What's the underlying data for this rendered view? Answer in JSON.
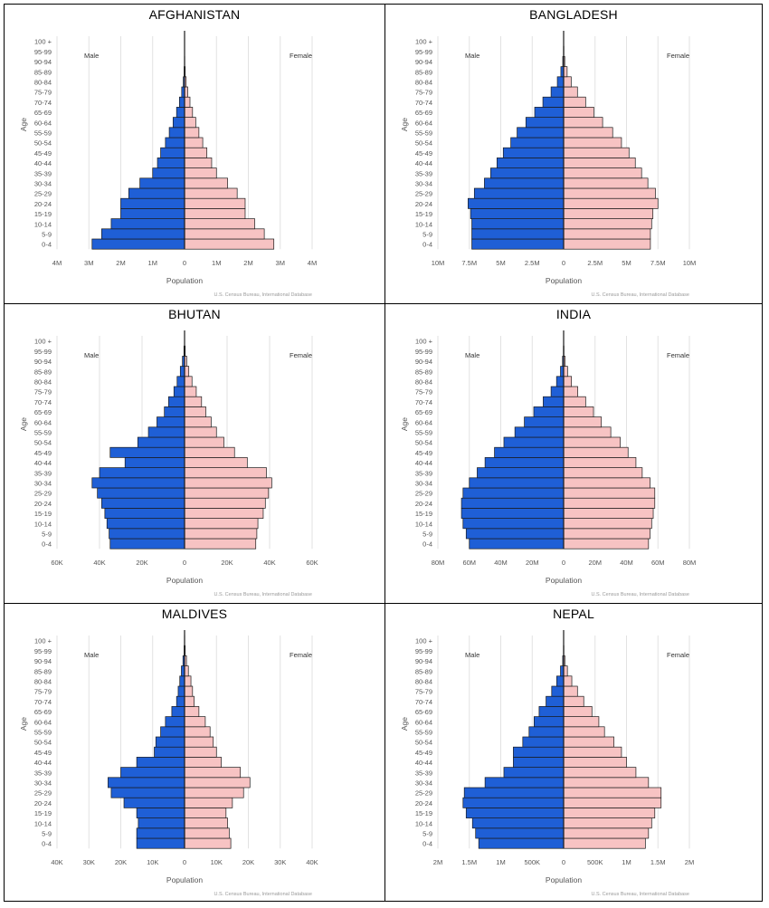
{
  "page": {
    "age_groups": [
      "0-4",
      "5-9",
      "10-14",
      "15-19",
      "20-24",
      "25-29",
      "30-34",
      "35-39",
      "40-44",
      "45-49",
      "50-54",
      "55-59",
      "60-64",
      "65-69",
      "70-74",
      "75-79",
      "80-84",
      "85-89",
      "90-94",
      "95-99",
      "100 +"
    ],
    "age_axis_label": "Age",
    "x_axis_label": "Population",
    "male_label": "Male",
    "female_label": "Female",
    "source": "U.S. Census Bureau, International Database"
  },
  "colors": {
    "male": "#1f5fd6",
    "female": "#f7c3c3",
    "outline": "#1a1a1a",
    "grid": "#e2e2e2",
    "axis_text": "#555555"
  },
  "chart_data": [
    {
      "type": "bar",
      "title": "AFGHANISTAN",
      "xlim": [
        -4000000,
        4000000
      ],
      "ticks": [
        -4000000,
        -3000000,
        -2000000,
        -1000000,
        0,
        1000000,
        2000000,
        3000000,
        4000000
      ],
      "tick_labels": [
        "4M",
        "3M",
        "2M",
        "1M",
        "0",
        "1M",
        "2M",
        "3M",
        "4M"
      ],
      "series": [
        {
          "name": "Male",
          "values": [
            2900000,
            2600000,
            2300000,
            2000000,
            2000000,
            1750000,
            1400000,
            1000000,
            850000,
            750000,
            600000,
            480000,
            360000,
            250000,
            160000,
            90000,
            40000,
            15000,
            5000,
            1000,
            0
          ]
        },
        {
          "name": "Female",
          "values": [
            2800000,
            2500000,
            2200000,
            1900000,
            1900000,
            1650000,
            1350000,
            1000000,
            850000,
            700000,
            570000,
            450000,
            350000,
            250000,
            170000,
            100000,
            50000,
            20000,
            6000,
            1000,
            0
          ]
        }
      ]
    },
    {
      "type": "bar",
      "title": "BANGLADESH",
      "xlim": [
        -10000000,
        10000000
      ],
      "ticks": [
        -10000000,
        -7500000,
        -5000000,
        -2500000,
        0,
        2500000,
        5000000,
        7500000,
        10000000
      ],
      "tick_labels": [
        "10M",
        "7.5M",
        "5M",
        "2.5M",
        "0",
        "2.5M",
        "5M",
        "7.5M",
        "10M"
      ],
      "series": [
        {
          "name": "Male",
          "values": [
            7300000,
            7300000,
            7300000,
            7400000,
            7600000,
            7100000,
            6300000,
            5800000,
            5300000,
            4800000,
            4200000,
            3700000,
            3000000,
            2300000,
            1650000,
            1000000,
            500000,
            220000,
            70000,
            15000,
            2000
          ]
        },
        {
          "name": "Female",
          "values": [
            6900000,
            6900000,
            7000000,
            7100000,
            7500000,
            7300000,
            6700000,
            6200000,
            5700000,
            5200000,
            4600000,
            3900000,
            3100000,
            2400000,
            1750000,
            1100000,
            600000,
            280000,
            90000,
            20000,
            3000
          ]
        }
      ]
    },
    {
      "type": "bar",
      "title": "BHUTAN",
      "xlim": [
        -60000,
        60000
      ],
      "ticks": [
        -60000,
        -40000,
        -20000,
        0,
        20000,
        40000,
        60000
      ],
      "tick_labels": [
        "60K",
        "40K",
        "20K",
        "0",
        "20K",
        "40K",
        "60K"
      ],
      "series": [
        {
          "name": "Male",
          "values": [
            35000,
            35500,
            36500,
            37500,
            39000,
            41000,
            43500,
            40000,
            28000,
            35000,
            22000,
            17000,
            13000,
            9500,
            7500,
            5000,
            3500,
            2000,
            1000,
            300,
            50
          ]
        },
        {
          "name": "Female",
          "values": [
            33500,
            34000,
            34500,
            37000,
            38000,
            39500,
            41000,
            38500,
            29500,
            23500,
            18500,
            15000,
            12500,
            10000,
            8000,
            5500,
            3500,
            2000,
            1000,
            300,
            50
          ]
        }
      ]
    },
    {
      "type": "bar",
      "title": "INDIA",
      "xlim": [
        -80000000,
        80000000
      ],
      "ticks": [
        -80000000,
        -60000000,
        -40000000,
        -20000000,
        0,
        20000000,
        40000000,
        60000000,
        80000000
      ],
      "tick_labels": [
        "80M",
        "60M",
        "40M",
        "20M",
        "0",
        "20M",
        "40M",
        "60M",
        "80M"
      ],
      "series": [
        {
          "name": "Male",
          "values": [
            60000000,
            62000000,
            64000000,
            65000000,
            65000000,
            64000000,
            60000000,
            55000000,
            50000000,
            44000000,
            38000000,
            31000000,
            25000000,
            19000000,
            13000000,
            8000000,
            4500000,
            2000000,
            700000,
            150000,
            20000
          ]
        },
        {
          "name": "Female",
          "values": [
            54000000,
            55000000,
            56000000,
            57000000,
            58000000,
            58000000,
            55000000,
            50000000,
            46000000,
            41000000,
            36000000,
            30000000,
            24000000,
            19000000,
            14000000,
            9000000,
            5000000,
            2500000,
            900000,
            200000,
            30000
          ]
        }
      ]
    },
    {
      "type": "bar",
      "title": "MALDIVES",
      "xlim": [
        -40000,
        40000
      ],
      "ticks": [
        -40000,
        -30000,
        -20000,
        -10000,
        0,
        10000,
        20000,
        30000,
        40000
      ],
      "tick_labels": [
        "40K",
        "30K",
        "20K",
        "10K",
        "0",
        "10K",
        "20K",
        "30K",
        "40K"
      ],
      "series": [
        {
          "name": "Male",
          "values": [
            15000,
            15000,
            14500,
            15000,
            19000,
            23000,
            24000,
            20000,
            15000,
            9500,
            9000,
            7500,
            6000,
            4000,
            2500,
            2000,
            1500,
            1000,
            500,
            150,
            50
          ]
        },
        {
          "name": "Female",
          "values": [
            14500,
            14000,
            13500,
            13000,
            15000,
            18500,
            20500,
            17500,
            11500,
            10000,
            9000,
            8000,
            6500,
            4500,
            3000,
            2500,
            2000,
            1200,
            600,
            200,
            50
          ]
        }
      ]
    },
    {
      "type": "bar",
      "title": "NEPAL",
      "xlim": [
        -2000000,
        2000000
      ],
      "ticks": [
        -2000000,
        -1500000,
        -1000000,
        -500000,
        0,
        500000,
        1000000,
        1500000,
        2000000
      ],
      "tick_labels": [
        "2M",
        "1.5M",
        "1M",
        "500K",
        "0",
        "500K",
        "1M",
        "1.5M",
        "2M"
      ],
      "series": [
        {
          "name": "Male",
          "values": [
            1350000,
            1400000,
            1450000,
            1550000,
            1600000,
            1580000,
            1250000,
            950000,
            800000,
            800000,
            650000,
            550000,
            470000,
            390000,
            280000,
            190000,
            110000,
            50000,
            15000,
            3000,
            500
          ]
        },
        {
          "name": "Female",
          "values": [
            1300000,
            1350000,
            1400000,
            1450000,
            1550000,
            1550000,
            1350000,
            1150000,
            1000000,
            920000,
            800000,
            650000,
            560000,
            450000,
            320000,
            220000,
            130000,
            60000,
            20000,
            4000,
            500
          ]
        }
      ]
    }
  ]
}
